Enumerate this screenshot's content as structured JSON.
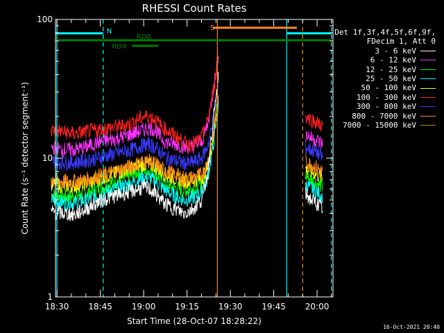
{
  "chart_data": {
    "type": "line",
    "title": "RHESSI Count Rates",
    "xlabel": "Start Time (28-Oct-07 18:28:22)",
    "ylabel": "Count Rate (s⁻¹ detector segment⁻¹)",
    "yscale": "log",
    "ylim": [
      1,
      100
    ],
    "xlim_minutes": [
      -0.5,
      95.5
    ],
    "x_ticks": [
      {
        "label": "18:30",
        "minute": 0
      },
      {
        "label": "18:45",
        "minute": 15
      },
      {
        "label": "19:00",
        "minute": 30
      },
      {
        "label": "19:15",
        "minute": 45
      },
      {
        "label": "19:30",
        "minute": 60
      },
      {
        "label": "19:45",
        "minute": 75
      },
      {
        "label": "20:00",
        "minute": 90
      }
    ],
    "y_ticks": [
      {
        "label": "1",
        "value": 1
      },
      {
        "label": "10",
        "value": 10
      },
      {
        "label": "100",
        "value": 100
      }
    ],
    "x": [
      "18:28",
      "18:32",
      "18:36",
      "18:40",
      "18:44",
      "18:48",
      "18:52",
      "18:56",
      "18:58",
      "19:00",
      "19:02",
      "19:04",
      "19:06",
      "19:08",
      "19:12",
      "19:14",
      "19:16",
      "19:18",
      "19:20",
      "19:22",
      "19:24",
      "19:26"
    ],
    "series": [
      {
        "name": "3 - 6 keV",
        "color": "#ffffff",
        "values": [
          4.1,
          4.0,
          3.9,
          4.3,
          4.8,
          5.2,
          5.5,
          5.8,
          6.0,
          6.1,
          6.0,
          5.6,
          5.0,
          4.6,
          4.2,
          4.0,
          4.2,
          4.5,
          5.0,
          7.5,
          18,
          40
        ]
      },
      {
        "name": "6 - 12 keV",
        "color": "#ff33ff",
        "values": [
          12,
          11.5,
          11.5,
          12,
          13,
          13.5,
          14,
          15,
          15.5,
          16,
          16.5,
          16,
          14,
          13,
          12.5,
          12,
          12,
          12.5,
          13,
          17,
          30,
          60
        ]
      },
      {
        "name": "12 - 25 keV",
        "color": "#00ff00",
        "values": [
          5.5,
          5.3,
          5.3,
          5.6,
          6.0,
          6.5,
          7.0,
          7.5,
          8.0,
          8.2,
          8.2,
          7.8,
          7.0,
          6.5,
          6.0,
          5.8,
          6.0,
          6.2,
          6.5,
          8.0,
          14,
          30
        ]
      },
      {
        "name": "25 - 50 keV",
        "color": "#00ffff",
        "values": [
          5.0,
          4.8,
          4.8,
          5.0,
          5.4,
          5.8,
          6.2,
          6.6,
          7.0,
          7.2,
          7.2,
          6.9,
          6.2,
          5.8,
          5.2,
          5.0,
          5.1,
          5.3,
          5.6,
          7.0,
          12,
          25
        ]
      },
      {
        "name": "50 - 100 keV",
        "color": "#ffff00",
        "values": [
          6.5,
          6.3,
          6.3,
          6.6,
          7.0,
          7.5,
          8.0,
          8.5,
          8.8,
          9.0,
          9.0,
          8.7,
          8.0,
          7.5,
          7.0,
          6.8,
          6.8,
          7.0,
          7.2,
          8.5,
          14,
          28
        ]
      },
      {
        "name": "100 - 300 keV",
        "color": "#ff2020",
        "values": [
          16,
          15.5,
          15,
          15.5,
          16,
          16.5,
          17,
          18,
          19,
          20,
          20,
          19,
          17,
          16,
          14,
          13,
          12.5,
          13,
          14,
          18,
          30,
          55
        ]
      },
      {
        "name": "300 - 800 keV",
        "color": "#3a3aff",
        "values": [
          9.5,
          9.3,
          9.3,
          9.6,
          10,
          10.5,
          11,
          11.5,
          12,
          12.5,
          12.5,
          12,
          11,
          10,
          9.5,
          9.2,
          9.2,
          9.5,
          10,
          12,
          18,
          35
        ]
      },
      {
        "name": "800 - 7000 keV",
        "color": "#ff8c1a",
        "values": [
          7.0,
          6.8,
          6.8,
          7.0,
          7.4,
          7.8,
          8.3,
          8.8,
          9.2,
          9.5,
          9.5,
          9.2,
          8.5,
          8.0,
          7.5,
          7.2,
          7.2,
          7.4,
          7.6,
          9.0,
          15,
          30
        ]
      },
      {
        "name": "7000 - 15000 keV",
        "color": "#b8860b",
        "values": [
          null,
          null,
          null,
          null,
          null,
          null,
          null,
          null,
          null,
          null,
          null,
          null,
          null,
          null,
          null,
          null,
          null,
          null,
          null,
          null,
          null,
          null
        ]
      }
    ],
    "after_gap": {
      "x": [
        "19:56",
        "19:58",
        "20:00",
        "20:02"
      ],
      "series_values": {
        "3 - 6 keV": [
          5.5,
          5.0,
          4.7,
          4.3
        ],
        "6 - 12 keV": [
          15,
          14,
          13.5,
          12.5
        ],
        "12 - 25 keV": [
          7.5,
          7.0,
          6.6,
          6.2
        ],
        "25 - 50 keV": [
          6.5,
          6.0,
          5.7,
          5.3
        ],
        "50 - 100 keV": [
          8.5,
          8.0,
          7.6,
          7.2
        ],
        "100 - 300 keV": [
          20,
          19,
          18,
          17
        ],
        "300 - 800 keV": [
          12,
          11.5,
          11,
          10
        ],
        "800 - 7000 keV": [
          9.5,
          9.0,
          8.5,
          8.0
        ]
      }
    },
    "legend_header": [
      "Det 1f,3f,4f,5f,6f,9f,",
      "FDecim 1, Att 0"
    ],
    "legend_placement": "right",
    "annotations": [
      {
        "label": "N",
        "color": "#00ffff",
        "start_minute": -0.5,
        "end_minute": 16
      },
      {
        "label": "N",
        "color": "#00ffff",
        "start_minute": 79.5,
        "end_minute": 95
      },
      {
        "label": "S",
        "color": "#ff8c1a",
        "start_minute": 54,
        "end_minute": 83
      },
      {
        "label": "RD4",
        "color": "#008000"
      },
      {
        "label": "RD0",
        "color": "#008000"
      }
    ],
    "vertical_lines": [
      {
        "minute": 0,
        "color": "#00ffff",
        "style": "solid"
      },
      {
        "minute": 16,
        "color": "#00ffff",
        "style": "dashed"
      },
      {
        "minute": 55.5,
        "color": "#ff8c1a",
        "style": "solid"
      },
      {
        "minute": 79.5,
        "color": "#00ffff",
        "style": "solid"
      },
      {
        "minute": 85,
        "color": "#ff8c1a",
        "style": "dashed"
      },
      {
        "minute": 95,
        "color": "#00ffff",
        "style": "dashed"
      }
    ],
    "grid": false
  },
  "footer": "16-Oct-2021 20:40"
}
